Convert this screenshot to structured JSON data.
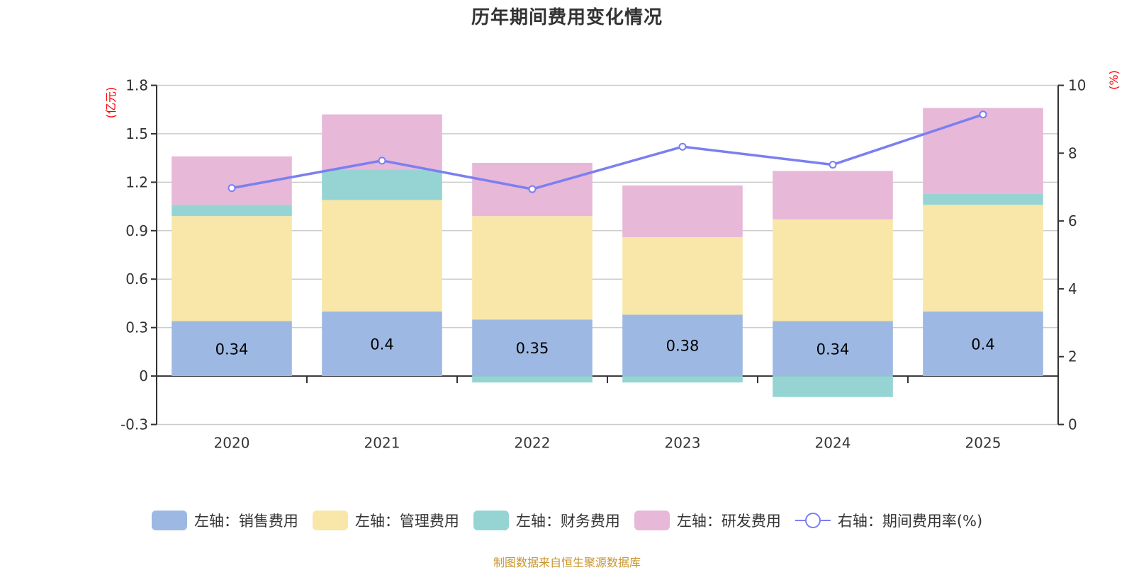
{
  "title": "历年期间费用变化情况",
  "footer": "制图数据来自恒生聚源数据库",
  "chart_data": {
    "type": "bar",
    "stacked": true,
    "title": "历年期间费用变化情况",
    "categories": [
      "2020",
      "2021",
      "2022",
      "2023",
      "2024",
      "2025"
    ],
    "left_axis": {
      "label": "(亿元)",
      "ylim": [
        -0.3,
        1.8
      ],
      "ticks": [
        "1.8",
        "1.5",
        "1.2",
        "0.9",
        "0.6",
        "0.3",
        "0",
        "-0.3"
      ],
      "tick_values": [
        1.8,
        1.5,
        1.2,
        0.9,
        0.6,
        0.3,
        0,
        -0.3
      ]
    },
    "right_axis": {
      "label": "(%)",
      "ylim": [
        0,
        10
      ],
      "ticks": [
        "10",
        "8",
        "6",
        "4",
        "2",
        "0"
      ],
      "tick_values": [
        10,
        8,
        6,
        4,
        2,
        0
      ]
    },
    "grid": true,
    "legend_position": "bottom",
    "series": [
      {
        "name": "左轴：销售费用",
        "type": "bar",
        "axis": "left",
        "color": "#9db8e2",
        "values": [
          0.34,
          0.4,
          0.35,
          0.38,
          0.34,
          0.4
        ],
        "labels": [
          "0.34",
          "0.4",
          "0.35",
          "0.38",
          "0.34",
          "0.4"
        ]
      },
      {
        "name": "左轴：管理费用",
        "type": "bar",
        "axis": "left",
        "color": "#f8e7a8",
        "values": [
          0.65,
          0.69,
          0.64,
          0.48,
          0.63,
          0.66
        ]
      },
      {
        "name": "左轴：财务费用",
        "type": "bar",
        "axis": "left",
        "color": "#96d4d4",
        "values": [
          0.07,
          0.19,
          -0.04,
          -0.04,
          -0.13,
          0.07
        ]
      },
      {
        "name": "左轴：研发费用",
        "type": "bar",
        "axis": "left",
        "color": "#e7b8d8",
        "values": [
          0.3,
          0.34,
          0.33,
          0.32,
          0.3,
          0.53
        ]
      },
      {
        "name": "右轴：期间费用率(%)",
        "type": "line",
        "axis": "right",
        "color": "#7b7ff0",
        "values": [
          6.97,
          7.78,
          6.94,
          8.19,
          7.66,
          9.14
        ]
      }
    ]
  }
}
